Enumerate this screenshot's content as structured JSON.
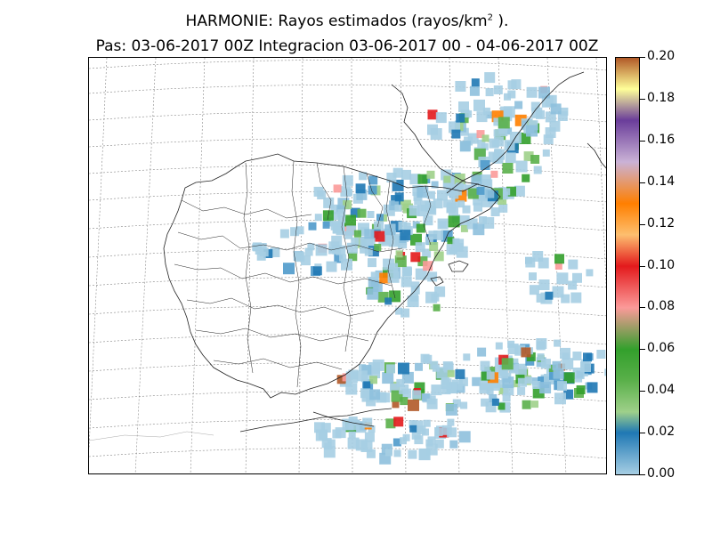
{
  "title": {
    "line1_prefix": "HARMONIE: Rayos estimados  (rayos/km",
    "line1_sup": "2",
    "line1_suffix": " ).",
    "line2": "Pas: 03-06-2017 00Z Integracion 03-06-2017 00 - 04-06-2017 00Z"
  },
  "colorbar": {
    "min": 0.0,
    "max": 0.2,
    "tick_labels": [
      "0.00",
      "0.02",
      "0.04",
      "0.06",
      "0.08",
      "0.10",
      "0.12",
      "0.14",
      "0.16",
      "0.18",
      "0.20"
    ],
    "stops": [
      {
        "v": 0.0,
        "color": "#a6cee3"
      },
      {
        "v": 0.02,
        "color": "#1f78b4"
      },
      {
        "v": 0.03,
        "color": "#9fd08a"
      },
      {
        "v": 0.045,
        "color": "#5ab04a"
      },
      {
        "v": 0.06,
        "color": "#33a02c"
      },
      {
        "v": 0.08,
        "color": "#fb9a99"
      },
      {
        "v": 0.1,
        "color": "#e31a1c"
      },
      {
        "v": 0.115,
        "color": "#fdbf6f"
      },
      {
        "v": 0.13,
        "color": "#ff7f00"
      },
      {
        "v": 0.15,
        "color": "#cab2d6"
      },
      {
        "v": 0.17,
        "color": "#6a3d9a"
      },
      {
        "v": 0.185,
        "color": "#ffff99"
      },
      {
        "v": 0.2,
        "color": "#b15928"
      }
    ]
  },
  "map": {
    "region": "Iberian Peninsula and Balearic Islands",
    "layers": [
      "graticule",
      "coastline",
      "provincial boundaries",
      "estimated lightning density field"
    ]
  }
}
